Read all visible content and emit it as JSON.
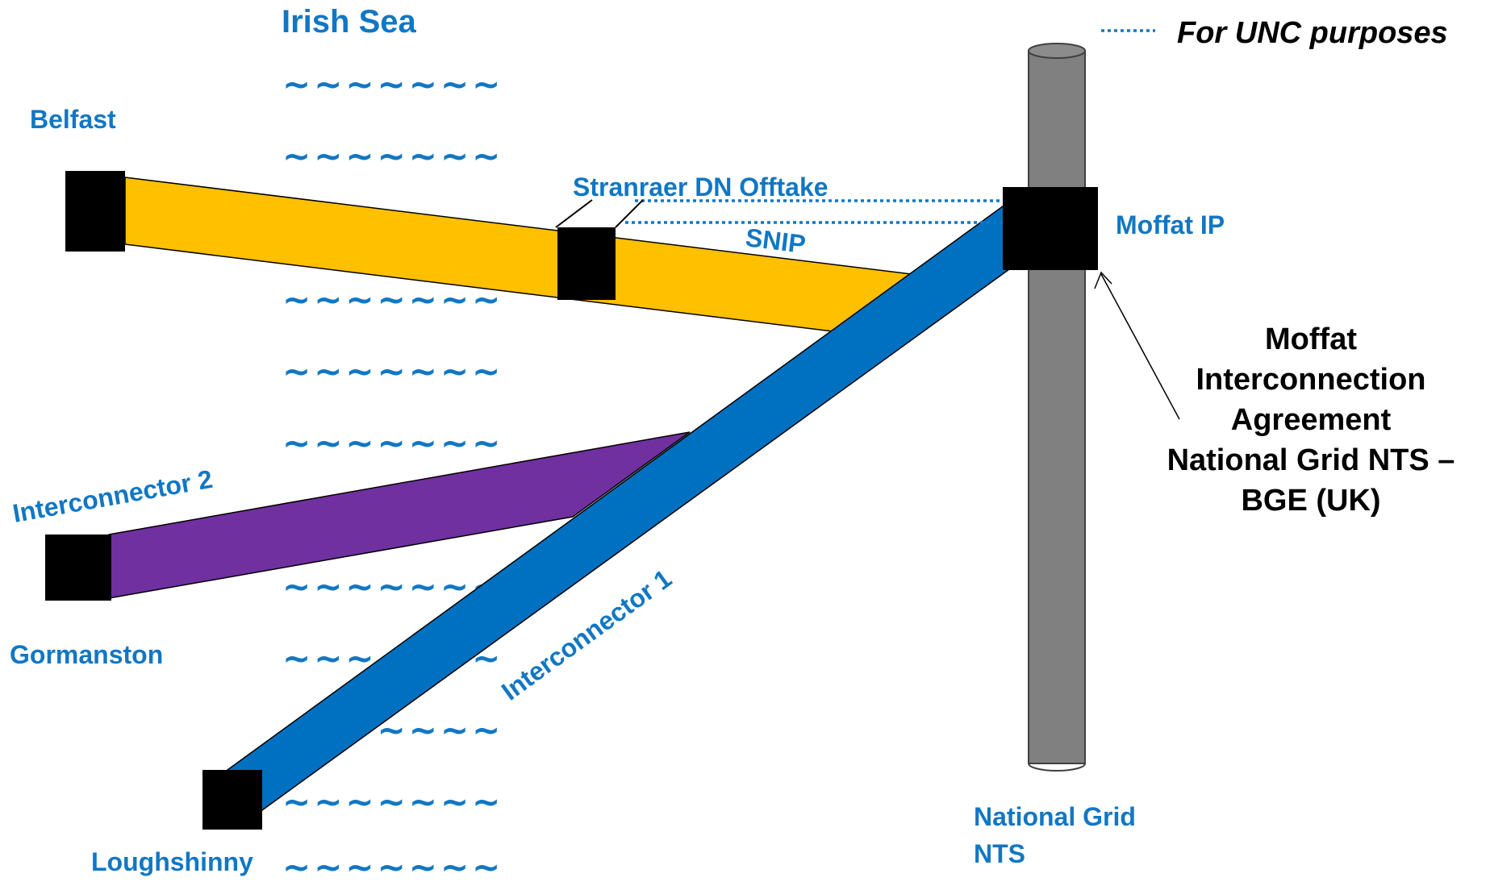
{
  "legend": {
    "label": "For UNC purposes"
  },
  "sea": {
    "title": "Irish Sea",
    "wave_pattern": "~~~~~~~"
  },
  "nodes": {
    "belfast": "Belfast",
    "gormanston": "Gormanston",
    "loughshinny": "Loughshinny",
    "stranraer": "Stranraer DN Offtake",
    "snip": "SNIP",
    "moffat_ip": "Moffat IP"
  },
  "pipelines": {
    "interconnector_1": "Interconnector 1",
    "interconnector_2": "Interconnector 2"
  },
  "nts": {
    "line1": "National Grid",
    "line2": "NTS"
  },
  "agreement": {
    "line1": "Moffat",
    "line2": "Interconnection",
    "line3": "Agreement",
    "line4": "National Grid NTS –",
    "line5": "BGE (UK)"
  },
  "colors": {
    "accent_blue": "#1177c4",
    "pipe_yellow": "#ffc000",
    "pipe_purple": "#7030a0",
    "pipe_blue": "#0070c0",
    "nts_grey": "#808080",
    "node_black": "#000000"
  }
}
